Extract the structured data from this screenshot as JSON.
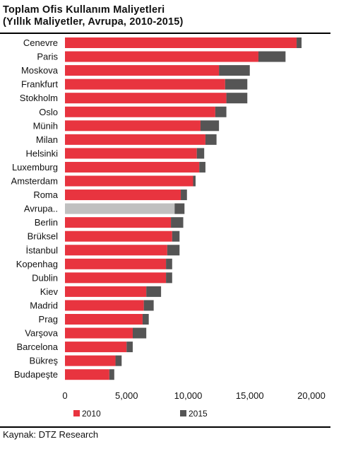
{
  "title_line1": "Toplam Ofis Kullanım Maliyetleri",
  "title_line2": "(Yıllık Maliyetler, Avrupa, 2010-2015)",
  "source": "Kaynak: DTZ Research",
  "colors": {
    "y2010": "#e8343f",
    "y2015": "#555555",
    "europe": "#c0c0c0",
    "text": "#111111"
  },
  "chart_data": {
    "type": "bar",
    "orientation": "horizontal",
    "stacked": true,
    "categories": [
      "Cenevre",
      "Paris",
      "Moskova",
      "Frankfurt",
      "Stokholm",
      "Oslo",
      "Münih",
      "Milan",
      "Helsinki",
      "Luxemburg",
      "Amsterdam",
      "Roma",
      "Avrupa..",
      "Berlin",
      "Brüksel",
      "İstanbul",
      "Kopenhag",
      "Dublin",
      "Kiev",
      "Madrid",
      "Prag",
      "Varşova",
      "Barcelona",
      "Bükreş",
      "Budapeşte"
    ],
    "series": [
      {
        "name": "2010",
        "values": [
          18800,
          15700,
          12500,
          13000,
          13100,
          12200,
          11000,
          11400,
          10700,
          10900,
          10400,
          9400,
          8900,
          8600,
          8700,
          8300,
          8200,
          8200,
          6600,
          6400,
          6300,
          5500,
          5000,
          4100,
          3600
        ]
      },
      {
        "name": "2015",
        "values": [
          400,
          2200,
          2500,
          1800,
          1700,
          900,
          1500,
          900,
          600,
          500,
          200,
          500,
          800,
          1000,
          600,
          1000,
          500,
          500,
          1200,
          800,
          500,
          1100,
          500,
          500,
          400
        ]
      }
    ],
    "highlight_category": "Avrupa..",
    "xlim": [
      0,
      20000
    ],
    "xticks": [
      "0",
      "5,000",
      "10,000",
      "15,000",
      "20,000"
    ],
    "xtick_values": [
      0,
      5000,
      10000,
      15000,
      20000
    ],
    "legend": {
      "position": "bottom",
      "items": [
        "2010",
        "2015"
      ]
    },
    "grid": false,
    "xlabel": "",
    "ylabel": ""
  }
}
